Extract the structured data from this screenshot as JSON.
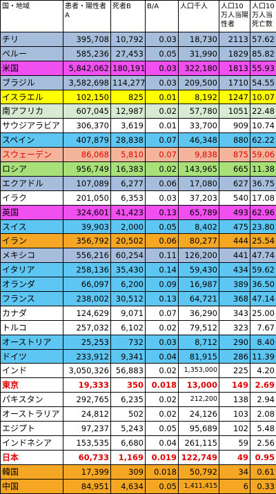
{
  "headers": [
    "国・地域",
    "患者・陽性者A",
    "死者B",
    "B/A",
    "人口千人",
    "人口10万人当陽性者",
    "人口10万人当死亡数"
  ],
  "rows": [
    {
      "name": "チリ",
      "a": "395,708",
      "b": "10,792",
      "ba": "0.03",
      "pop": "18,730",
      "pos": "2113",
      "death": "57.62",
      "bg": "#a6bedb",
      "style": "normal"
    },
    {
      "name": "ペルー",
      "a": "585,236",
      "b": "27,453",
      "ba": "0.05",
      "pop": "31,990",
      "pos": "1829",
      "death": "85.82",
      "bg": "#a6bedb",
      "style": "normal"
    },
    {
      "name": "米国",
      "a": "5,842,062",
      "b": "180,191",
      "ba": "0.03",
      "pop": "322,180",
      "pos": "1813",
      "death": "55.93",
      "bg": "#f050f0",
      "style": "normal"
    },
    {
      "name": "ブラジル",
      "a": "3,582,698",
      "b": "114,277",
      "ba": "0.03",
      "pop": "209,500",
      "pos": "1710",
      "death": "54.55",
      "bg": "#a6bedb",
      "style": "normal"
    },
    {
      "name": "イスラエル",
      "a": "102,150",
      "b": "825",
      "ba": "0.01",
      "pop": "8,192",
      "pos": "1247",
      "death": "10.07",
      "bg": "#ffff00",
      "style": "normal"
    },
    {
      "name": "南アフリカ",
      "a": "607,045",
      "b": "12,987",
      "ba": "0.02",
      "pop": "57,780",
      "pos": "1051",
      "death": "22.48",
      "bg": "#d9ead3",
      "style": "normal"
    },
    {
      "name": "サウジアラビア",
      "a": "306,370",
      "b": "3,619",
      "ba": "0.01",
      "pop": "33,700",
      "pos": "909",
      "death": "10.74",
      "bg": "#ffffff",
      "style": "normal"
    },
    {
      "name": "スペイン",
      "a": "407,879",
      "b": "28,838",
      "ba": "0.07",
      "pop": "46,348",
      "pos": "880",
      "death": "62.22",
      "bg": "#5ec6f2",
      "style": "normal"
    },
    {
      "name": "スウェーデン",
      "a": "86,068",
      "b": "5,810",
      "ba": "0.07",
      "pop": "9,838",
      "pos": "875",
      "death": "59.06",
      "bg": "#f4b49c",
      "style": "redtext"
    },
    {
      "name": "ロシア",
      "a": "956,749",
      "b": "16,383",
      "ba": "0.02",
      "pop": "143,965",
      "pos": "665",
      "death": "11.38",
      "bg": "#a8e07a",
      "style": "normal"
    },
    {
      "name": "エクアドル",
      "a": "107,089",
      "b": "6,277",
      "ba": "0.06",
      "pop": "17,080",
      "pos": "627",
      "death": "36.75",
      "bg": "#a6bedb",
      "style": "normal"
    },
    {
      "name": "イラク",
      "a": "201,050",
      "b": "6,353",
      "ba": "0.03",
      "pop": "37,203",
      "pos": "540",
      "death": "17.08",
      "bg": "#ffffff",
      "style": "normal"
    },
    {
      "name": "英国",
      "a": "324,601",
      "b": "41,423",
      "ba": "0.13",
      "pop": "65,789",
      "pos": "493",
      "death": "62.96",
      "bg": "#f050f0",
      "style": "normal"
    },
    {
      "name": "スイス",
      "a": "39,903",
      "b": "2,000",
      "ba": "0.05",
      "pop": "8,402",
      "pos": "475",
      "death": "23.80",
      "bg": "#5ec6f2",
      "style": "normal"
    },
    {
      "name": "イラン",
      "a": "356,792",
      "b": "20,502",
      "ba": "0.06",
      "pop": "80,277",
      "pos": "444",
      "death": "25.54",
      "bg": "#f5a623",
      "style": "normal"
    },
    {
      "name": "メキシコ",
      "a": "556,216",
      "b": "60,254",
      "ba": "0.11",
      "pop": "126,200",
      "pos": "441",
      "death": "47.74",
      "bg": "#a6bedb",
      "style": "normal"
    },
    {
      "name": "イタリア",
      "a": "258,136",
      "b": "35,430",
      "ba": "0.14",
      "pop": "59,430",
      "pos": "434",
      "death": "59.62",
      "bg": "#5ec6f2",
      "style": "normal"
    },
    {
      "name": "オランダ",
      "a": "66,097",
      "b": "6,200",
      "ba": "0.09",
      "pop": "16,987",
      "pos": "389",
      "death": "36.50",
      "bg": "#5ec6f2",
      "style": "normal"
    },
    {
      "name": "フランス",
      "a": "238,002",
      "b": "30,512",
      "ba": "0.13",
      "pop": "64,721",
      "pos": "368",
      "death": "47.14",
      "bg": "#5ec6f2",
      "style": "normal"
    },
    {
      "name": "カナダ",
      "a": "124,629",
      "b": "9,071",
      "ba": "0.07",
      "pop": "36,290",
      "pos": "343",
      "death": "25.00",
      "bg": "#ffffff",
      "style": "normal"
    },
    {
      "name": "トルコ",
      "a": "257,032",
      "b": "6,102",
      "ba": "0.02",
      "pop": "79,512",
      "pos": "323",
      "death": "7.67",
      "bg": "#ffffff",
      "style": "normal"
    },
    {
      "name": "オーストリア",
      "a": "25,253",
      "b": "732",
      "ba": "0.03",
      "pop": "8,712",
      "pos": "290",
      "death": "8.40",
      "bg": "#5ec6f2",
      "style": "normal"
    },
    {
      "name": "ドイツ",
      "a": "233,912",
      "b": "9,341",
      "ba": "0.04",
      "pop": "81,915",
      "pos": "286",
      "death": "11.39",
      "bg": "#5ec6f2",
      "style": "normal"
    },
    {
      "name": "インド",
      "a": "3,050,326",
      "b": "56,883",
      "ba": "0.02",
      "pop": "1,353,000",
      "pos": "225",
      "death": "4.20",
      "bg": "#ffffff",
      "style": "normal",
      "popSmall": true
    },
    {
      "name": "東京",
      "a": "19,333",
      "b": "350",
      "ba": "0.018",
      "pop": "13,000",
      "pos": "149",
      "death": "2.69",
      "bg": "#ffffff",
      "style": "bold"
    },
    {
      "name": "パキスタン",
      "a": "292,765",
      "b": "6,235",
      "ba": "0.02",
      "pop": "212,200",
      "pos": "138",
      "death": "2.94",
      "bg": "#ffffff",
      "style": "normal",
      "popSmall": true
    },
    {
      "name": "オーストラリア",
      "a": "24,812",
      "b": "502",
      "ba": "0.02",
      "pop": "24,126",
      "pos": "103",
      "death": "2.08",
      "bg": "#ffffff",
      "style": "normal"
    },
    {
      "name": "エジプト",
      "a": "97,237",
      "b": "5,243",
      "ba": "0.05",
      "pop": "95,689",
      "pos": "102",
      "death": "5.48",
      "bg": "#ffffff",
      "style": "normal"
    },
    {
      "name": "インドネシア",
      "a": "153,535",
      "b": "6,680",
      "ba": "0.04",
      "pop": "261,115",
      "pos": "59",
      "death": "2.56",
      "bg": "#ffffff",
      "style": "normal"
    },
    {
      "name": "日本",
      "a": "60,733",
      "b": "1,169",
      "ba": "0.019",
      "pop": "122,749",
      "pos": "49",
      "death": "0.95",
      "bg": "#ffffff",
      "style": "bold"
    },
    {
      "name": "韓国",
      "a": "17,399",
      "b": "309",
      "ba": "0.018",
      "pop": "50,792",
      "pos": "34",
      "death": "0.61",
      "bg": "#f5a623",
      "style": "normal"
    },
    {
      "name": "中国",
      "a": "84,951",
      "b": "4,634",
      "ba": "0.05",
      "pop": "1,411,415",
      "pos": "6",
      "death": "0.33",
      "bg": "#f5a623",
      "style": "normal",
      "popSmall": true
    }
  ]
}
